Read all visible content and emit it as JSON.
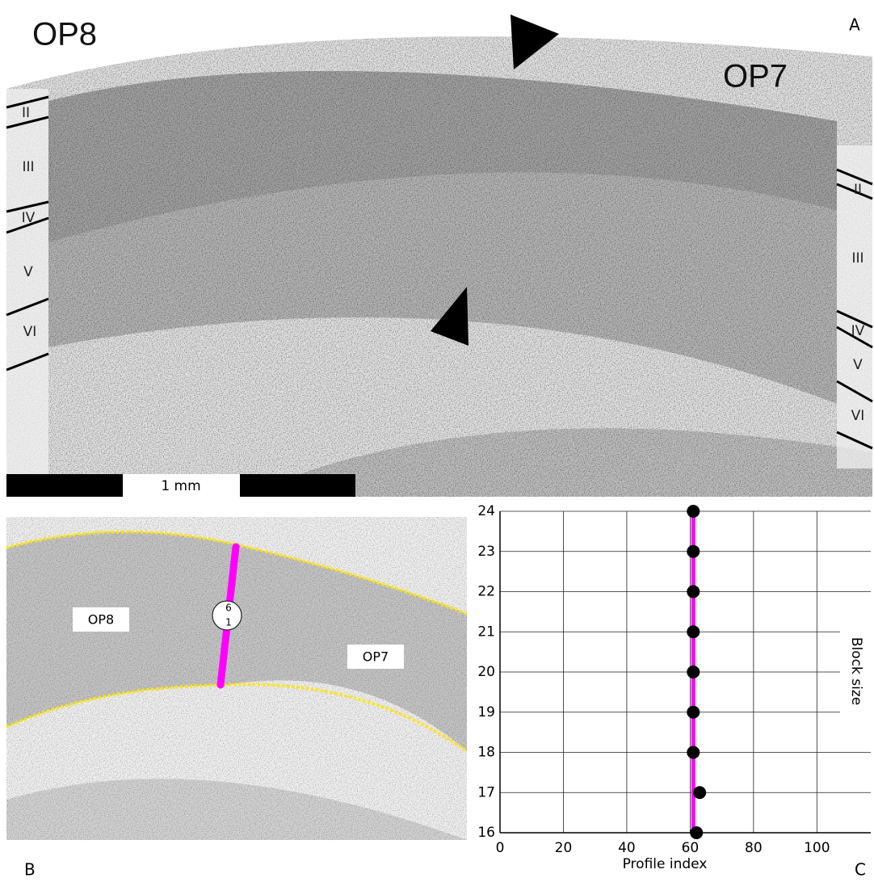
{
  "panel_a": {
    "label": "A",
    "regions": [
      "OP8",
      "OP7"
    ],
    "layers_left": [
      "II",
      "III",
      "IV",
      "V",
      "VI"
    ],
    "layers_right": [
      "II",
      "III",
      "IV",
      "V",
      "VI"
    ],
    "scale_bar": "1 mm"
  },
  "panel_b": {
    "label": "B",
    "regions": [
      "OP8",
      "OP7"
    ],
    "marker": [
      "6",
      "1"
    ]
  },
  "panel_c": {
    "label": "C"
  },
  "chart_data": {
    "type": "scatter",
    "x_label": "Profile index",
    "y_label": "Block size",
    "xlim": [
      0,
      117
    ],
    "ylim": [
      16,
      24
    ],
    "xticks": [
      0,
      20,
      40,
      60,
      80,
      100
    ],
    "yticks": [
      16,
      17,
      18,
      19,
      20,
      21,
      22,
      23,
      24
    ],
    "grid": true,
    "series": [
      {
        "type": "line",
        "color": "#ff00ff",
        "x": [
          61,
          61
        ],
        "values": [
          16,
          24
        ]
      },
      {
        "type": "scatter",
        "color": "#000000",
        "x": [
          61,
          61,
          61,
          61,
          61,
          61,
          61,
          63,
          62
        ],
        "values": [
          24,
          23,
          22,
          21,
          20,
          19,
          18,
          17,
          16
        ]
      }
    ]
  }
}
